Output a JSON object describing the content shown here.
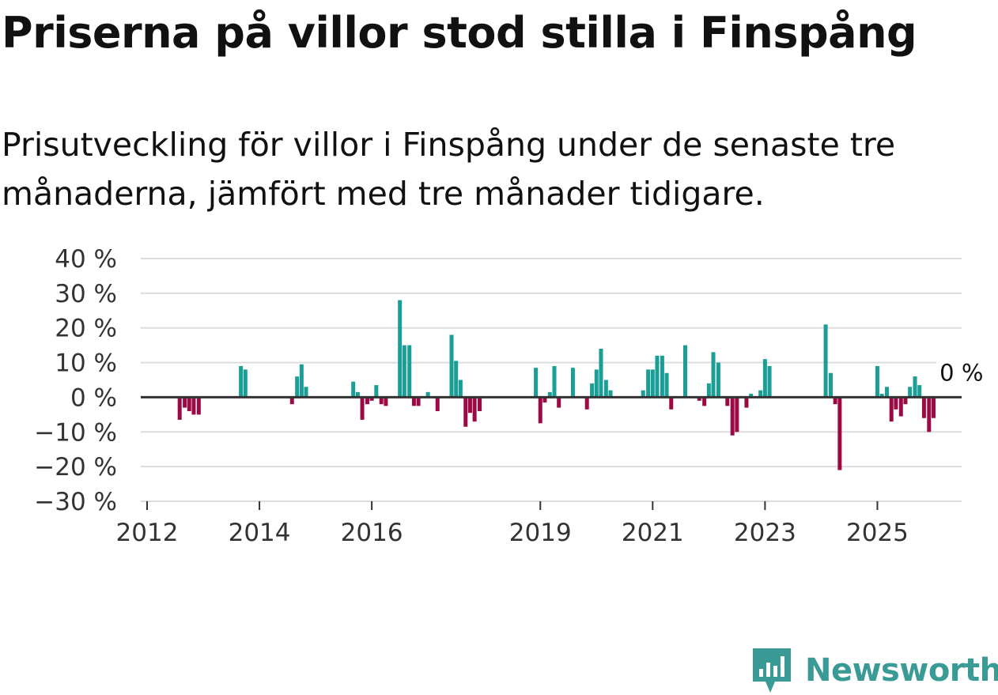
{
  "title": "Priserna på villor stod stilla i Finspång",
  "subtitle": "Prisutveckling för villor i Finspång under de senaste tre månaderna, jämfört med tre månader tidigare.",
  "colors": {
    "positive": "#1a9e96",
    "negative": "#9b0a45",
    "grid": "#dddddd",
    "zero": "#333333",
    "brand": "#3a9a95"
  },
  "chart_data": {
    "type": "bar",
    "ylim": [
      -30,
      40
    ],
    "yticks": [
      40,
      30,
      20,
      10,
      0,
      -10,
      -20,
      -30
    ],
    "ytick_labels": [
      "40 %",
      "30 %",
      "20 %",
      "10 %",
      "0 %",
      "−10 %",
      "−20 %",
      "−30 %"
    ],
    "xlim": [
      2012.0,
      2026.5
    ],
    "xticks": [
      2012,
      2014,
      2016,
      2019,
      2021,
      2023,
      2025
    ],
    "xtick_labels": [
      "2012",
      "2014",
      "2016",
      "2019",
      "2021",
      "2023",
      "2025"
    ],
    "last_value_label": "0 %",
    "series": [
      {
        "x": 2012.58,
        "y": -6.5
      },
      {
        "x": 2012.67,
        "y": -3
      },
      {
        "x": 2012.75,
        "y": -4
      },
      {
        "x": 2012.83,
        "y": -5
      },
      {
        "x": 2012.92,
        "y": -5
      },
      {
        "x": 2013.67,
        "y": 9
      },
      {
        "x": 2013.75,
        "y": 8
      },
      {
        "x": 2014.58,
        "y": -2
      },
      {
        "x": 2014.67,
        "y": 6
      },
      {
        "x": 2014.75,
        "y": 9.5
      },
      {
        "x": 2014.83,
        "y": 3
      },
      {
        "x": 2015.67,
        "y": 4.5
      },
      {
        "x": 2015.75,
        "y": 1.5
      },
      {
        "x": 2015.83,
        "y": -6.5
      },
      {
        "x": 2015.92,
        "y": -2
      },
      {
        "x": 2016.0,
        "y": -1
      },
      {
        "x": 2016.08,
        "y": 3.5
      },
      {
        "x": 2016.17,
        "y": -2
      },
      {
        "x": 2016.25,
        "y": -2.5
      },
      {
        "x": 2016.5,
        "y": 28
      },
      {
        "x": 2016.58,
        "y": 15
      },
      {
        "x": 2016.67,
        "y": 15
      },
      {
        "x": 2016.75,
        "y": -2.5
      },
      {
        "x": 2016.83,
        "y": -2.5
      },
      {
        "x": 2017.0,
        "y": 1.5
      },
      {
        "x": 2017.17,
        "y": -4
      },
      {
        "x": 2017.42,
        "y": 18
      },
      {
        "x": 2017.5,
        "y": 10.5
      },
      {
        "x": 2017.58,
        "y": 5
      },
      {
        "x": 2017.67,
        "y": -8.5
      },
      {
        "x": 2017.75,
        "y": -4.5
      },
      {
        "x": 2017.83,
        "y": -7
      },
      {
        "x": 2017.92,
        "y": -4
      },
      {
        "x": 2018.92,
        "y": 8.5
      },
      {
        "x": 2019.0,
        "y": -7.5
      },
      {
        "x": 2019.08,
        "y": -1.5
      },
      {
        "x": 2019.17,
        "y": 1.5
      },
      {
        "x": 2019.25,
        "y": 9
      },
      {
        "x": 2019.33,
        "y": -3
      },
      {
        "x": 2019.58,
        "y": 8.5
      },
      {
        "x": 2019.83,
        "y": -3.5
      },
      {
        "x": 2019.92,
        "y": 4
      },
      {
        "x": 2020.0,
        "y": 8
      },
      {
        "x": 2020.08,
        "y": 14
      },
      {
        "x": 2020.17,
        "y": 5
      },
      {
        "x": 2020.25,
        "y": 2
      },
      {
        "x": 2020.83,
        "y": 2
      },
      {
        "x": 2020.92,
        "y": 8
      },
      {
        "x": 2021.0,
        "y": 8
      },
      {
        "x": 2021.08,
        "y": 12
      },
      {
        "x": 2021.17,
        "y": 12
      },
      {
        "x": 2021.25,
        "y": 7
      },
      {
        "x": 2021.33,
        "y": -3.5
      },
      {
        "x": 2021.58,
        "y": 15
      },
      {
        "x": 2021.83,
        "y": -1
      },
      {
        "x": 2021.92,
        "y": -2.5
      },
      {
        "x": 2022.0,
        "y": 4
      },
      {
        "x": 2022.08,
        "y": 13
      },
      {
        "x": 2022.17,
        "y": 10
      },
      {
        "x": 2022.33,
        "y": -2.5
      },
      {
        "x": 2022.42,
        "y": -11
      },
      {
        "x": 2022.5,
        "y": -10
      },
      {
        "x": 2022.67,
        "y": -3
      },
      {
        "x": 2022.75,
        "y": 1
      },
      {
        "x": 2022.92,
        "y": 2
      },
      {
        "x": 2023.0,
        "y": 11
      },
      {
        "x": 2023.08,
        "y": 9
      },
      {
        "x": 2024.08,
        "y": 21
      },
      {
        "x": 2024.17,
        "y": 7
      },
      {
        "x": 2024.25,
        "y": -2
      },
      {
        "x": 2024.33,
        "y": -21
      },
      {
        "x": 2025.0,
        "y": 9
      },
      {
        "x": 2025.08,
        "y": 1
      },
      {
        "x": 2025.17,
        "y": 3
      },
      {
        "x": 2025.25,
        "y": -7
      },
      {
        "x": 2025.33,
        "y": -3.5
      },
      {
        "x": 2025.42,
        "y": -5.5
      },
      {
        "x": 2025.5,
        "y": -2
      },
      {
        "x": 2025.58,
        "y": 3
      },
      {
        "x": 2025.67,
        "y": 6
      },
      {
        "x": 2025.75,
        "y": 3.5
      },
      {
        "x": 2025.83,
        "y": -6
      },
      {
        "x": 2025.92,
        "y": -10
      },
      {
        "x": 2026.0,
        "y": -6
      },
      {
        "x": 2026.08,
        "y": 0
      }
    ]
  },
  "brand": {
    "name": "Newsworthy",
    "logo_icon": "newsworthy-logo-icon"
  }
}
